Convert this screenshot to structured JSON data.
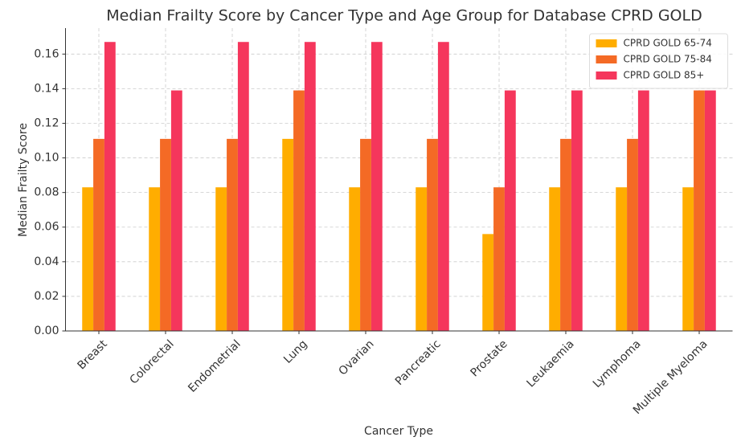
{
  "chart_data": {
    "type": "bar",
    "title": "Median Frailty Score by Cancer Type and Age Group for Database CPRD GOLD",
    "x_label": "Cancer Type",
    "y_label": "Median Frailty Score",
    "categories": [
      "Breast",
      "Colorectal",
      "Endometrial",
      "Lung",
      "Ovarian",
      "Pancreatic",
      "Prostate",
      "Leukaemia",
      "Lymphoma",
      "Multiple Myeloma"
    ],
    "series": [
      {
        "name": "CPRD GOLD 65-74",
        "color": "#ffad00",
        "values": [
          0.083,
          0.083,
          0.083,
          0.111,
          0.083,
          0.083,
          0.056,
          0.083,
          0.083,
          0.083
        ]
      },
      {
        "name": "CPRD GOLD 75-84",
        "color": "#f46a25",
        "values": [
          0.111,
          0.111,
          0.111,
          0.139,
          0.111,
          0.111,
          0.083,
          0.111,
          0.111,
          0.139
        ]
      },
      {
        "name": "CPRD GOLD 85+",
        "color": "#f5365c",
        "values": [
          0.167,
          0.139,
          0.167,
          0.167,
          0.167,
          0.167,
          0.139,
          0.139,
          0.139,
          0.139
        ]
      }
    ],
    "ylim": [
      0,
      0.175
    ],
    "yticks": [
      {
        "value": 0,
        "label": "0.00"
      },
      {
        "value": 0.02,
        "label": "0.02"
      },
      {
        "value": 0.04,
        "label": "0.04"
      },
      {
        "value": 0.06,
        "label": "0.06"
      },
      {
        "value": 0.08,
        "label": "0.08"
      },
      {
        "value": 0.1,
        "label": "0.10"
      },
      {
        "value": 0.12,
        "label": "0.12"
      },
      {
        "value": 0.14,
        "label": "0.14"
      },
      {
        "value": 0.16,
        "label": "0.16"
      }
    ],
    "grid": true,
    "legend": "upper right"
  }
}
